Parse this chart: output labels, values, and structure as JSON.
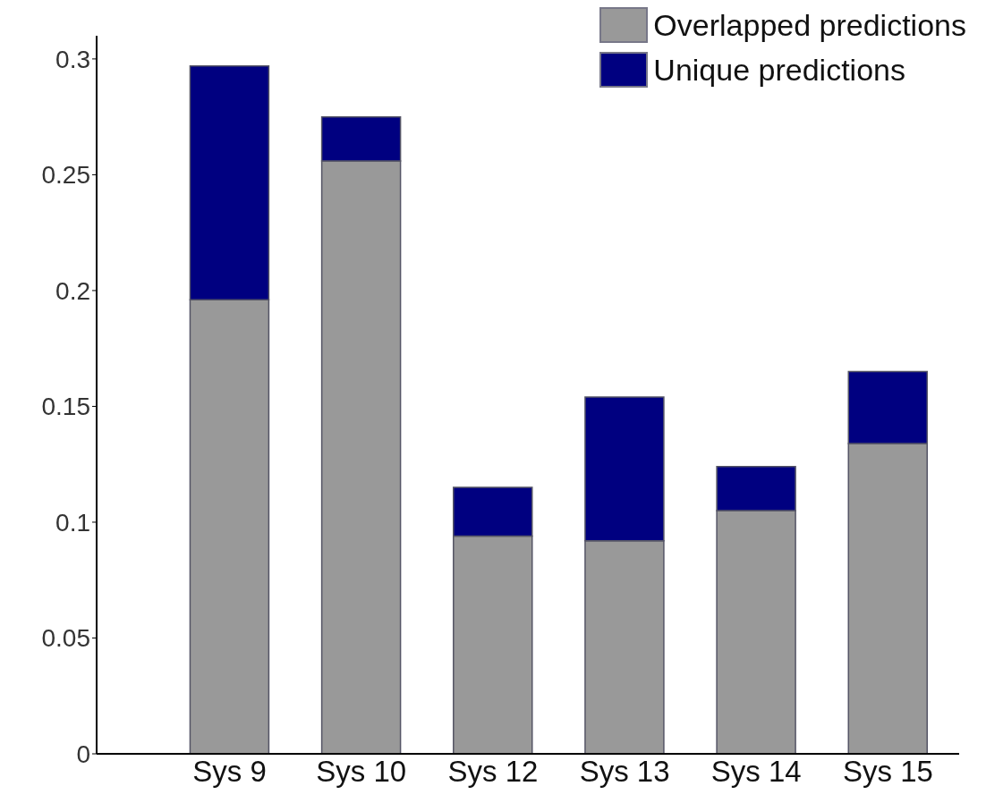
{
  "chart_data": {
    "type": "bar",
    "stacked": true,
    "categories": [
      "Sys 9",
      "Sys 10",
      "Sys 12",
      "Sys 13",
      "Sys 14",
      "Sys 15"
    ],
    "series": [
      {
        "name": "Overlapped predictions",
        "color": "#999999",
        "values": [
          0.196,
          0.256,
          0.094,
          0.092,
          0.105,
          0.134
        ]
      },
      {
        "name": "Unique predictions",
        "color": "#000080",
        "values": [
          0.101,
          0.019,
          0.021,
          0.062,
          0.019,
          0.031
        ]
      }
    ],
    "ylim": [
      0,
      0.31
    ],
    "yticks": [
      0,
      0.05,
      0.1,
      0.15,
      0.2,
      0.25,
      0.3
    ],
    "grid": false,
    "legend": "top right"
  }
}
